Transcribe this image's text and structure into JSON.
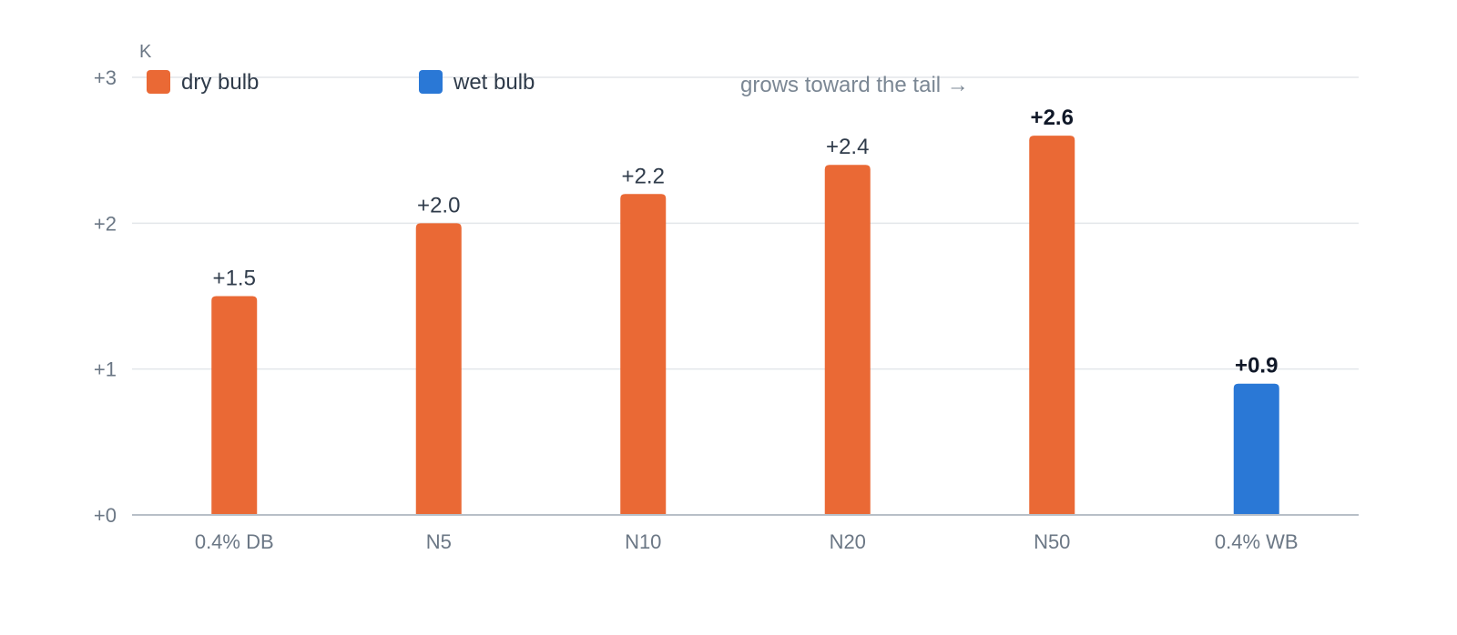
{
  "chart_data": {
    "type": "bar",
    "unit_label": "K",
    "categories": [
      "0.4% DB",
      "N5",
      "N10",
      "N20",
      "N50",
      "0.4% WB"
    ],
    "values": [
      1.5,
      2.0,
      2.2,
      2.4,
      2.6,
      0.9
    ],
    "value_labels": [
      "+1.5",
      "+2.0",
      "+2.2",
      "+2.4",
      "+2.6",
      "+0.9"
    ],
    "emphasized_labels": [
      false,
      false,
      false,
      false,
      true,
      true
    ],
    "bar_groups": [
      "dry bulb",
      "dry bulb",
      "dry bulb",
      "dry bulb",
      "dry bulb",
      "wet bulb"
    ],
    "legend": [
      {
        "label": "dry bulb",
        "color": "#ea6935"
      },
      {
        "label": "wet bulb",
        "color": "#2a78d6"
      }
    ],
    "legend_position": "top-left",
    "y_ticks": [
      0,
      1,
      2,
      3
    ],
    "y_tick_labels": [
      "+0",
      "+1",
      "+2",
      "+3"
    ],
    "ylim": [
      0,
      3
    ],
    "grid": true,
    "annotation": "grows toward the tail →"
  }
}
